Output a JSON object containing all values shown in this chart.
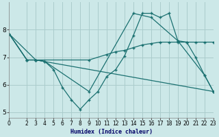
{
  "xlabel": "Humidex (Indice chaleur)",
  "background_color": "#cce8e8",
  "grid_color": "#aacccc",
  "line_color": "#1a7070",
  "lines": [
    {
      "x": [
        0,
        2,
        3,
        4,
        5,
        6,
        7,
        8,
        9,
        10,
        11,
        12,
        13,
        14,
        15,
        16,
        17,
        18,
        19,
        20,
        21,
        22,
        23
      ],
      "y": [
        7.85,
        6.9,
        6.9,
        6.85,
        6.55,
        5.9,
        5.45,
        5.1,
        5.45,
        5.75,
        6.3,
        6.55,
        7.05,
        7.8,
        8.6,
        8.6,
        8.45,
        8.6,
        7.6,
        7.55,
        7.0,
        6.35,
        5.75
      ]
    },
    {
      "x": [
        0,
        2,
        3,
        9,
        11,
        12,
        13,
        14,
        15,
        16,
        17,
        18,
        19,
        20,
        21,
        22,
        23
      ],
      "y": [
        7.85,
        6.9,
        6.9,
        6.9,
        7.1,
        7.2,
        7.25,
        7.35,
        7.45,
        7.5,
        7.55,
        7.55,
        7.55,
        7.55,
        7.55,
        7.55,
        7.55
      ]
    },
    {
      "x": [
        0,
        2,
        3,
        4,
        9,
        14,
        16,
        19,
        22,
        23
      ],
      "y": [
        7.85,
        6.9,
        6.9,
        6.85,
        5.75,
        8.6,
        8.45,
        7.6,
        6.35,
        5.75
      ]
    },
    {
      "x": [
        0,
        3,
        23
      ],
      "y": [
        7.85,
        6.9,
        5.75
      ]
    }
  ],
  "xlim": [
    0,
    23
  ],
  "ylim": [
    4.8,
    9.0
  ],
  "yticks": [
    5,
    6,
    7,
    8
  ],
  "xticks": [
    0,
    2,
    3,
    4,
    5,
    6,
    7,
    8,
    9,
    10,
    11,
    12,
    13,
    14,
    15,
    16,
    17,
    18,
    19,
    20,
    21,
    22,
    23
  ],
  "xticklabels": [
    "0",
    "2",
    "3",
    "4",
    "5",
    "6",
    "7",
    "8",
    "9",
    "10",
    "11",
    "12",
    "13",
    "14",
    "15",
    "16",
    "17",
    "18",
    "19",
    "20",
    "21",
    "22",
    "23"
  ]
}
